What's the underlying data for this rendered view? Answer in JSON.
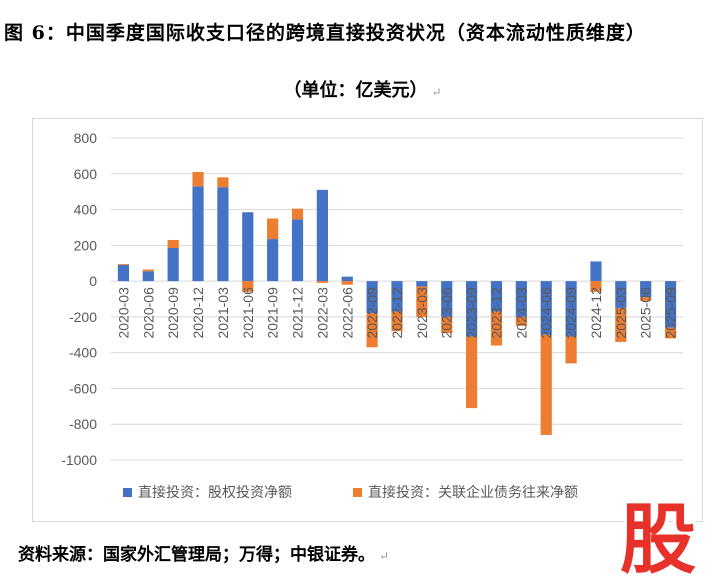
{
  "header": {
    "title": "图 6：中国季度国际收支口径的跨境直接投资状况（资本流动性质维度）",
    "unit": "（单位：亿美元）"
  },
  "footer": {
    "source": "资料来源：国家外汇管理局；万得；中银证券。"
  },
  "logo": {
    "text": "股"
  },
  "colors": {
    "equity": "#4472C4",
    "debt": "#ED7D31",
    "grid": "#d9d9d9",
    "logo_red": "#e8312a"
  },
  "chart_data": {
    "type": "bar",
    "stacked": true,
    "categories": [
      "2020-03",
      "2020-06",
      "2020-09",
      "2020-12",
      "2021-03",
      "2021-06",
      "2021-09",
      "2021-12",
      "2022-03",
      "2022-06",
      "2022-09",
      "2022-12",
      "2023-03",
      "2023-06",
      "2023-09",
      "2023-12",
      "2024-03",
      "2024-06",
      "2024-09",
      "2024-12",
      "2025-03",
      "2025-06",
      "2025-09"
    ],
    "series": [
      {
        "name": "直接投资：股权投资净额",
        "values": [
          90,
          55,
          185,
          530,
          525,
          385,
          235,
          345,
          510,
          25,
          -180,
          -170,
          -30,
          -200,
          -310,
          -170,
          -200,
          -300,
          -310,
          110,
          -150,
          -90,
          -260
        ]
      },
      {
        "name": "直接投资：关联企业债务往来净额",
        "values": [
          5,
          10,
          45,
          80,
          55,
          -60,
          115,
          60,
          -10,
          -20,
          -190,
          -110,
          -170,
          -90,
          -400,
          -190,
          -50,
          -560,
          -150,
          -60,
          -190,
          -20,
          -60
        ]
      }
    ],
    "yticks": [
      "800",
      "600",
      "400",
      "200",
      "0",
      "-200",
      "-400",
      "-600",
      "-800",
      "-1000"
    ],
    "ylim": [
      -1000,
      800
    ],
    "legend": "bottom",
    "grid": true
  }
}
